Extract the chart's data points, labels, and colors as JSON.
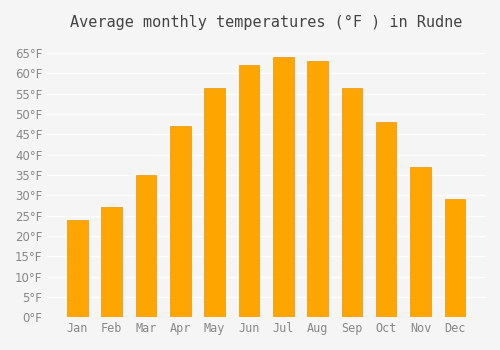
{
  "title": "Average monthly temperatures (°F ) in Rudne",
  "months": [
    "Jan",
    "Feb",
    "Mar",
    "Apr",
    "May",
    "Jun",
    "Jul",
    "Aug",
    "Sep",
    "Oct",
    "Nov",
    "Dec"
  ],
  "values": [
    24,
    27,
    35,
    47,
    56.5,
    62,
    64,
    63,
    56.5,
    48,
    37,
    29
  ],
  "bar_color": "#FFA500",
  "bar_edge_color": "#FFA500",
  "ylim": [
    0,
    68
  ],
  "yticks": [
    0,
    5,
    10,
    15,
    20,
    25,
    30,
    35,
    40,
    45,
    50,
    55,
    60,
    65
  ],
  "background_color": "#f5f5f5",
  "grid_color": "#ffffff",
  "title_fontsize": 11,
  "tick_fontsize": 8.5
}
